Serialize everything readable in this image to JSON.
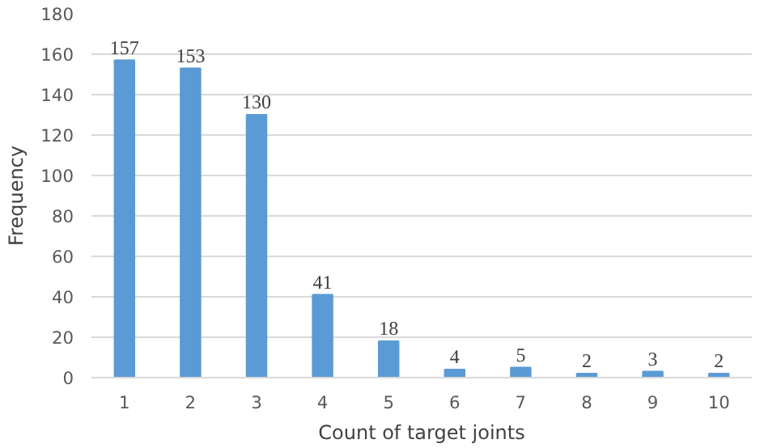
{
  "chart_data": {
    "type": "bar",
    "xlabel": "Count of target joints",
    "ylabel": "Frequency",
    "categories": [
      "1",
      "2",
      "3",
      "4",
      "5",
      "6",
      "7",
      "8",
      "9",
      "10"
    ],
    "values": [
      157,
      153,
      130,
      41,
      18,
      4,
      5,
      2,
      3,
      2
    ],
    "color": "#5b9bd5",
    "ylim": [
      0,
      180
    ],
    "yticks": [
      0,
      20,
      40,
      60,
      80,
      100,
      120,
      140,
      160,
      180
    ],
    "grid": "y",
    "data_labels": true
  }
}
